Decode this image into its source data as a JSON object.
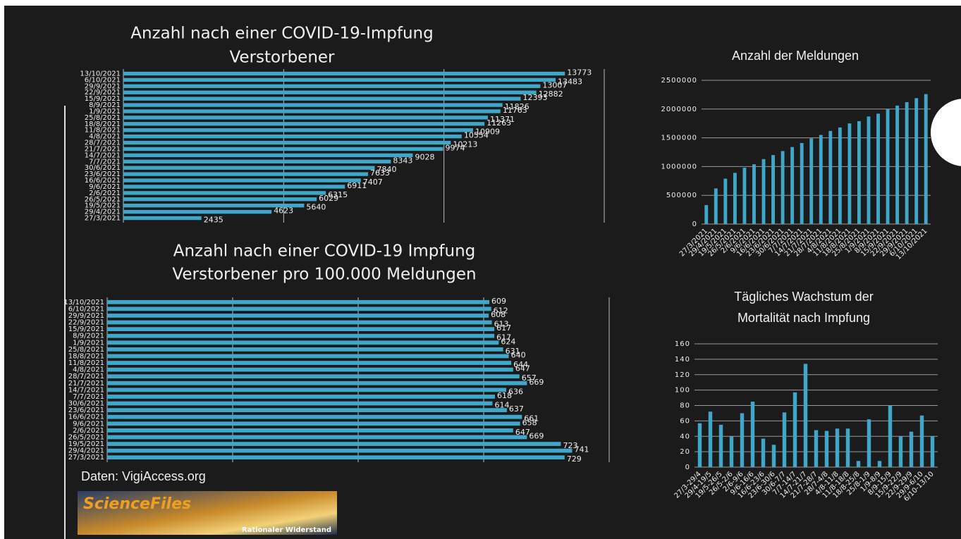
{
  "chart_data": [
    {
      "type": "bar",
      "orientation": "horizontal",
      "title": [
        "Anzahl nach einer COVID-19-Impfung",
        "Verstorbener"
      ],
      "categories": [
        "13/10/2021",
        "6/10/2021",
        "29/9/2021",
        "22/9/2021",
        "15/9/2021",
        "8/9/2021",
        "1/9/2021",
        "25/8/2021",
        "18/8/2021",
        "11/8/2021",
        "4/8/2021",
        "28/7/2021",
        "21/7/2021",
        "14/7/2021",
        "7/7/2021",
        "30/6/2021",
        "23/6/2021",
        "16/6/2021",
        "9/6/2021",
        "2/6/2021",
        "26/5/2021",
        "19/5/2021",
        "29/4/2021",
        "27/3/2021"
      ],
      "values": [
        13773,
        13483,
        13007,
        12882,
        12393,
        11826,
        11763,
        11371,
        11263,
        10909,
        10554,
        10213,
        9974,
        9028,
        8343,
        7840,
        7633,
        7407,
        6911,
        6315,
        6029,
        5640,
        4623,
        2435
      ],
      "color": "#3fa7c9",
      "xlim": [
        0,
        15000
      ],
      "xticks": [
        0,
        5000,
        10000,
        15000
      ],
      "grid": true,
      "tick_labels": false,
      "data_labels": true
    },
    {
      "type": "bar",
      "orientation": "horizontal",
      "title": [
        "Anzahl nach einer COVID-19 Impfung",
        "Verstorbener pro 100.000 Meldungen"
      ],
      "categories": [
        "13/10/2021",
        "6/10/2021",
        "29/9/2021",
        "22/9/2021",
        "15/9/2021",
        "8/9/2021",
        "1/9/2021",
        "25/8/2021",
        "18/8/2021",
        "11/8/2021",
        "4/8/2021",
        "28/7/2021",
        "21/7/2021",
        "14/7/2021",
        "7/7/2021",
        "30/6/2021",
        "23/6/2021",
        "16/6/2021",
        "9/6/2021",
        "2/6/2021",
        "26/5/2021",
        "19/5/2021",
        "29/4/2021",
        "27/3/2021"
      ],
      "values": [
        609,
        612,
        608,
        613,
        617,
        617,
        624,
        631,
        640,
        644,
        647,
        657,
        669,
        636,
        618,
        614,
        637,
        661,
        658,
        647,
        669,
        723,
        741,
        729
      ],
      "color": "#3fa7c9",
      "xlim": [
        0,
        800
      ],
      "xticks": [
        0,
        200,
        400,
        600,
        800
      ],
      "grid": true,
      "tick_labels": false,
      "data_labels": true
    },
    {
      "type": "bar",
      "orientation": "vertical",
      "title": [
        "Anzahl der Meldungen"
      ],
      "categories": [
        "27/3/2021",
        "29/4/2021",
        "19/5/2021",
        "26/5/2021",
        "2/6/2021",
        "9/6/2021",
        "16/6/2021",
        "23/6/2021",
        "30/6/2021",
        "7/7/2021",
        "14/7/2021",
        "21/7/2021",
        "28/7/2021",
        "4/8/2021",
        "11/8/2021",
        "18/8/2021",
        "25/8/2021",
        "1/9/2021",
        "8/9/2021",
        "15/9/2021",
        "22/9/2021",
        "29/9/2021",
        "6/10/2021",
        "13/10/2021"
      ],
      "values": [
        330000,
        620000,
        790000,
        890000,
        980000,
        1040000,
        1130000,
        1200000,
        1270000,
        1340000,
        1410000,
        1490000,
        1550000,
        1620000,
        1680000,
        1750000,
        1790000,
        1870000,
        1920000,
        2000000,
        2060000,
        2120000,
        2190000,
        2260000
      ],
      "color": "#3fa7c9",
      "ylim": [
        0,
        2500000
      ],
      "yticks": [
        0,
        500000,
        1000000,
        1500000,
        2000000,
        2500000
      ],
      "grid": true,
      "tick_labels": true,
      "data_labels": false
    },
    {
      "type": "bar",
      "orientation": "vertical",
      "title": [
        "Tägliches Wachstum der",
        "Mortalität nach Impfung"
      ],
      "categories": [
        "27/3-29/4",
        "29/4-19/5",
        "19/5-26/5",
        "26/5-2/6",
        "2/6-9/6",
        "9/6-16/6",
        "16/6-23/6",
        "23/6-30/6",
        "30/6-7/7",
        "7/7-14/7",
        "14/7-21/7",
        "21/7-28/7",
        "28/7-4/8",
        "4/8-11/8",
        "11/8-18/8",
        "18/8-25/8",
        "25/8-1/9",
        "1/9-8/9",
        "8/9-15/9",
        "15/9-22/9",
        "22/9-29/9",
        "29/9-6/10",
        "6/10-13/10"
      ],
      "values": [
        57,
        72,
        55,
        40,
        70,
        85,
        37,
        29,
        71,
        97,
        134,
        48,
        47,
        50,
        50,
        8,
        62,
        8,
        80,
        40,
        46,
        67,
        40
      ],
      "color": "#3fa7c9",
      "ylim": [
        0,
        160
      ],
      "yticks": [
        0,
        20,
        40,
        60,
        80,
        100,
        120,
        140,
        160
      ],
      "grid": true,
      "tick_labels": true,
      "data_labels": false
    }
  ],
  "source": "Daten: VigiAccess.org",
  "logo": {
    "name": "ScienceFiles",
    "tagline": "Rationaler Widerstand"
  }
}
